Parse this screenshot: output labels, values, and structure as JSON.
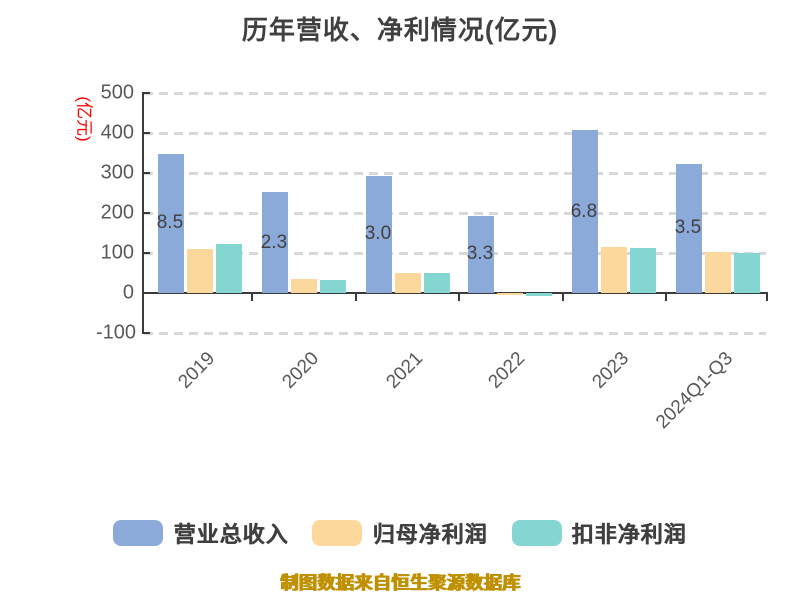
{
  "chart_data": {
    "type": "bar",
    "title": "历年营收、净利情况(亿元)",
    "y_axis_unit": "(亿元)",
    "y_axis_unit_color": "#ff0000",
    "categories": [
      "2019",
      "2020",
      "2021",
      "2022",
      "2023",
      "2024Q1-Q3"
    ],
    "series": [
      {
        "name": "营业总收入",
        "key": "revenue",
        "color": "#8caad9",
        "values": [
          348.5,
          252.3,
          293.0,
          193.3,
          406.8,
          323.5
        ]
      },
      {
        "name": "归母净利润",
        "key": "net-profit",
        "color": "#fdd89d",
        "values": [
          109,
          34,
          49,
          -6,
          115,
          102
        ]
      },
      {
        "name": "扣非净利润",
        "key": "non-gaap-net-profit",
        "color": "#84d6d2",
        "values": [
          122,
          33,
          50,
          -8,
          113,
          99
        ]
      }
    ],
    "visible_bar_labels": [
      "8.5",
      "2.3",
      "3.0",
      "3.3",
      "6.8",
      "3.5"
    ],
    "y_ticks": [
      500,
      400,
      300,
      200,
      100,
      0,
      -100
    ],
    "ylim": [
      -100,
      500
    ],
    "grid": "horizontal-dashed",
    "legend_position": "bottom"
  },
  "footer": {
    "source_note": "制图数据来自恒生聚源数据库",
    "color": "#bf9000"
  },
  "colors": {
    "title_text": "#404040",
    "axis_line": "#3a3a3a",
    "tick_text": "#595959",
    "gridline": "#d8d8d8"
  }
}
